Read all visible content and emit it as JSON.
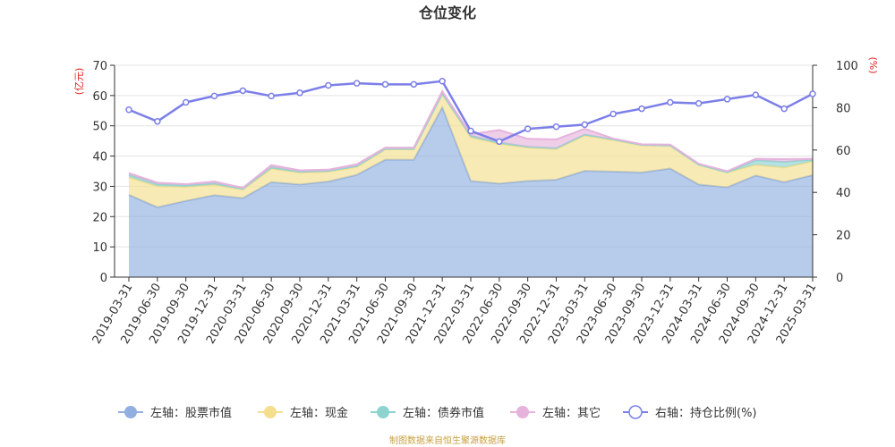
{
  "chart_data": {
    "type": "area",
    "title": "仓位变化",
    "left_axis_unit": "(亿元)",
    "right_axis_unit": "(%)",
    "ylim_left": [
      0,
      70
    ],
    "yticks_left": [
      0,
      10,
      20,
      30,
      40,
      50,
      60,
      70
    ],
    "ylim_right": [
      0,
      100
    ],
    "yticks_right": [
      0,
      20,
      40,
      60,
      80,
      100
    ],
    "categories": [
      "2019-03-31",
      "2019-06-30",
      "2019-09-30",
      "2019-12-31",
      "2020-03-31",
      "2020-06-30",
      "2020-09-30",
      "2020-12-31",
      "2021-03-31",
      "2021-06-30",
      "2021-09-30",
      "2021-12-31",
      "2022-03-31",
      "2022-06-30",
      "2022-09-30",
      "2022-12-31",
      "2023-03-31",
      "2023-06-30",
      "2023-09-30",
      "2023-12-31",
      "2024-03-31",
      "2024-06-30",
      "2024-09-30",
      "2024-12-31",
      "2025-03-31"
    ],
    "stacked_series": [
      {
        "name": "左轴：股票市值",
        "color": "#91afe0",
        "values": [
          27.2,
          23.1,
          25.2,
          27.1,
          26.1,
          31.4,
          30.6,
          31.6,
          33.8,
          38.8,
          38.8,
          56.1,
          31.8,
          30.9,
          31.8,
          32.2,
          35.1,
          34.9,
          34.6,
          35.9,
          30.6,
          29.7,
          33.6,
          31.4,
          33.7
        ]
      },
      {
        "name": "左轴：现金",
        "color": "#f5df8e",
        "values": [
          5.8,
          6.9,
          4.6,
          3.4,
          2.8,
          4.4,
          3.9,
          3.2,
          2.6,
          3.4,
          3.4,
          4.3,
          14.4,
          13.1,
          11.0,
          10.1,
          11.7,
          10.4,
          8.9,
          7.5,
          6.5,
          4.9,
          3.5,
          4.8,
          4.6
        ]
      },
      {
        "name": "左轴：债券市值",
        "color": "#8dd3cf",
        "values": [
          0.8,
          0.7,
          0.6,
          0.5,
          0.3,
          0.5,
          0.4,
          0.3,
          0.3,
          0.2,
          0.2,
          0.2,
          0.5,
          0.5,
          0.3,
          0.3,
          0.3,
          0.2,
          0.2,
          0.1,
          0.1,
          0.1,
          1.5,
          1.9,
          0.5
        ]
      },
      {
        "name": "左轴：其它",
        "color": "#e6b3dc",
        "values": [
          0.6,
          0.5,
          0.3,
          0.6,
          0.3,
          0.7,
          0.4,
          0.4,
          0.6,
          0.4,
          0.4,
          0.8,
          0.5,
          4.1,
          2.6,
          2.9,
          1.9,
          0.3,
          0.2,
          0.3,
          0.3,
          0.3,
          0.5,
          0.9,
          0.3
        ]
      }
    ],
    "line_series": {
      "name": "右轴：持仓比例(%)",
      "color": "#7b7fe8",
      "values": [
        79,
        73.5,
        82.5,
        85.5,
        88,
        85.5,
        87,
        90.5,
        91.5,
        91,
        91,
        92.5,
        69,
        64,
        70,
        71,
        72,
        77,
        79.5,
        82.5,
        82,
        84,
        86,
        79.5,
        86.5
      ]
    },
    "source_text": "制图数据来自恒生聚源数据库"
  }
}
